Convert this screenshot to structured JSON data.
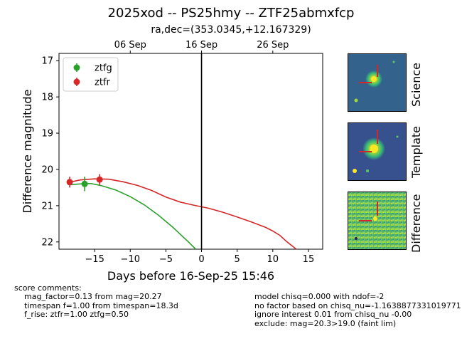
{
  "figure": {
    "title": "2025xod -- PS25hmy -- ZTF25abmxfcp",
    "subtitle": "ra,dec=(353.0345,+12.167329)"
  },
  "chart_data": {
    "type": "scatter",
    "title": "2025xod -- PS25hmy -- ZTF25abmxfcp",
    "subtitle": "ra,dec=(353.0345,+12.167329)",
    "xlabel": "Days before 16-Sep-25 15:46",
    "ylabel": "Difference magnitude",
    "xlim": [
      -20,
      17
    ],
    "ylim": [
      22.2,
      16.8
    ],
    "x_ticks": [
      -15,
      -10,
      -5,
      0,
      5,
      10,
      15
    ],
    "x_tick_labels": [
      "−15",
      "−10",
      "−5",
      "0",
      "5",
      "10",
      "15"
    ],
    "y_ticks": [
      17,
      18,
      19,
      20,
      21,
      22
    ],
    "y_tick_labels": [
      "17",
      "18",
      "19",
      "20",
      "21",
      "22"
    ],
    "top_axis": {
      "ticks": [
        -10,
        0,
        10
      ],
      "labels": [
        "06 Sep",
        "16 Sep",
        "26 Sep"
      ]
    },
    "vline_x": 0,
    "legend": {
      "position": "top-left",
      "entries": [
        "ztfg",
        "ztfr"
      ]
    },
    "series": [
      {
        "name": "ztfg",
        "color": "#2ca02c",
        "points": [
          {
            "x": -16.4,
            "y": 20.4,
            "err": 0.2
          }
        ],
        "model": [
          {
            "x": -18.5,
            "y": 20.42
          },
          {
            "x": -17,
            "y": 20.4
          },
          {
            "x": -15.5,
            "y": 20.39
          },
          {
            "x": -14,
            "y": 20.45
          },
          {
            "x": -12,
            "y": 20.57
          },
          {
            "x": -10,
            "y": 20.75
          },
          {
            "x": -8,
            "y": 20.98
          },
          {
            "x": -6,
            "y": 21.27
          },
          {
            "x": -4,
            "y": 21.6
          },
          {
            "x": -2,
            "y": 21.97
          },
          {
            "x": -0.8,
            "y": 22.2
          }
        ]
      },
      {
        "name": "ztfr",
        "color": "#d62728",
        "points": [
          {
            "x": -18.5,
            "y": 20.35,
            "err": 0.15
          },
          {
            "x": -14.3,
            "y": 20.28,
            "err": 0.15
          }
        ],
        "model": [
          {
            "x": -18.5,
            "y": 20.35
          },
          {
            "x": -17,
            "y": 20.29
          },
          {
            "x": -15,
            "y": 20.26
          },
          {
            "x": -13,
            "y": 20.27
          },
          {
            "x": -11,
            "y": 20.34
          },
          {
            "x": -9,
            "y": 20.44
          },
          {
            "x": -7,
            "y": 20.58
          },
          {
            "x": -5,
            "y": 20.76
          },
          {
            "x": -3,
            "y": 20.9
          },
          {
            "x": -1,
            "y": 20.99
          },
          {
            "x": 1,
            "y": 21.07
          },
          {
            "x": 3,
            "y": 21.18
          },
          {
            "x": 5,
            "y": 21.31
          },
          {
            "x": 7,
            "y": 21.45
          },
          {
            "x": 9,
            "y": 21.6
          },
          {
            "x": 10,
            "y": 21.7
          },
          {
            "x": 11,
            "y": 21.82
          },
          {
            "x": 12,
            "y": 22.0
          },
          {
            "x": 13.3,
            "y": 22.2
          }
        ]
      }
    ]
  },
  "cutouts": {
    "science_label": "Science",
    "template_label": "Template",
    "difference_label": "Difference"
  },
  "comments": {
    "header": "score comments:",
    "left": [
      "mag_factor=0.13 from mag=20.27",
      "timespan f=1.00 from timespan=18.3d",
      "f_rise: ztfr=1.00 ztfg=0.50"
    ],
    "right": [
      "model chisq=0.000 with ndof=-2",
      "no factor based on chisq_nu=-1.1638877331019771",
      "ignore interest 0.01 from chisq_nu -0.00",
      "exclude: mag=20.3>19.0 (faint lim)"
    ]
  }
}
